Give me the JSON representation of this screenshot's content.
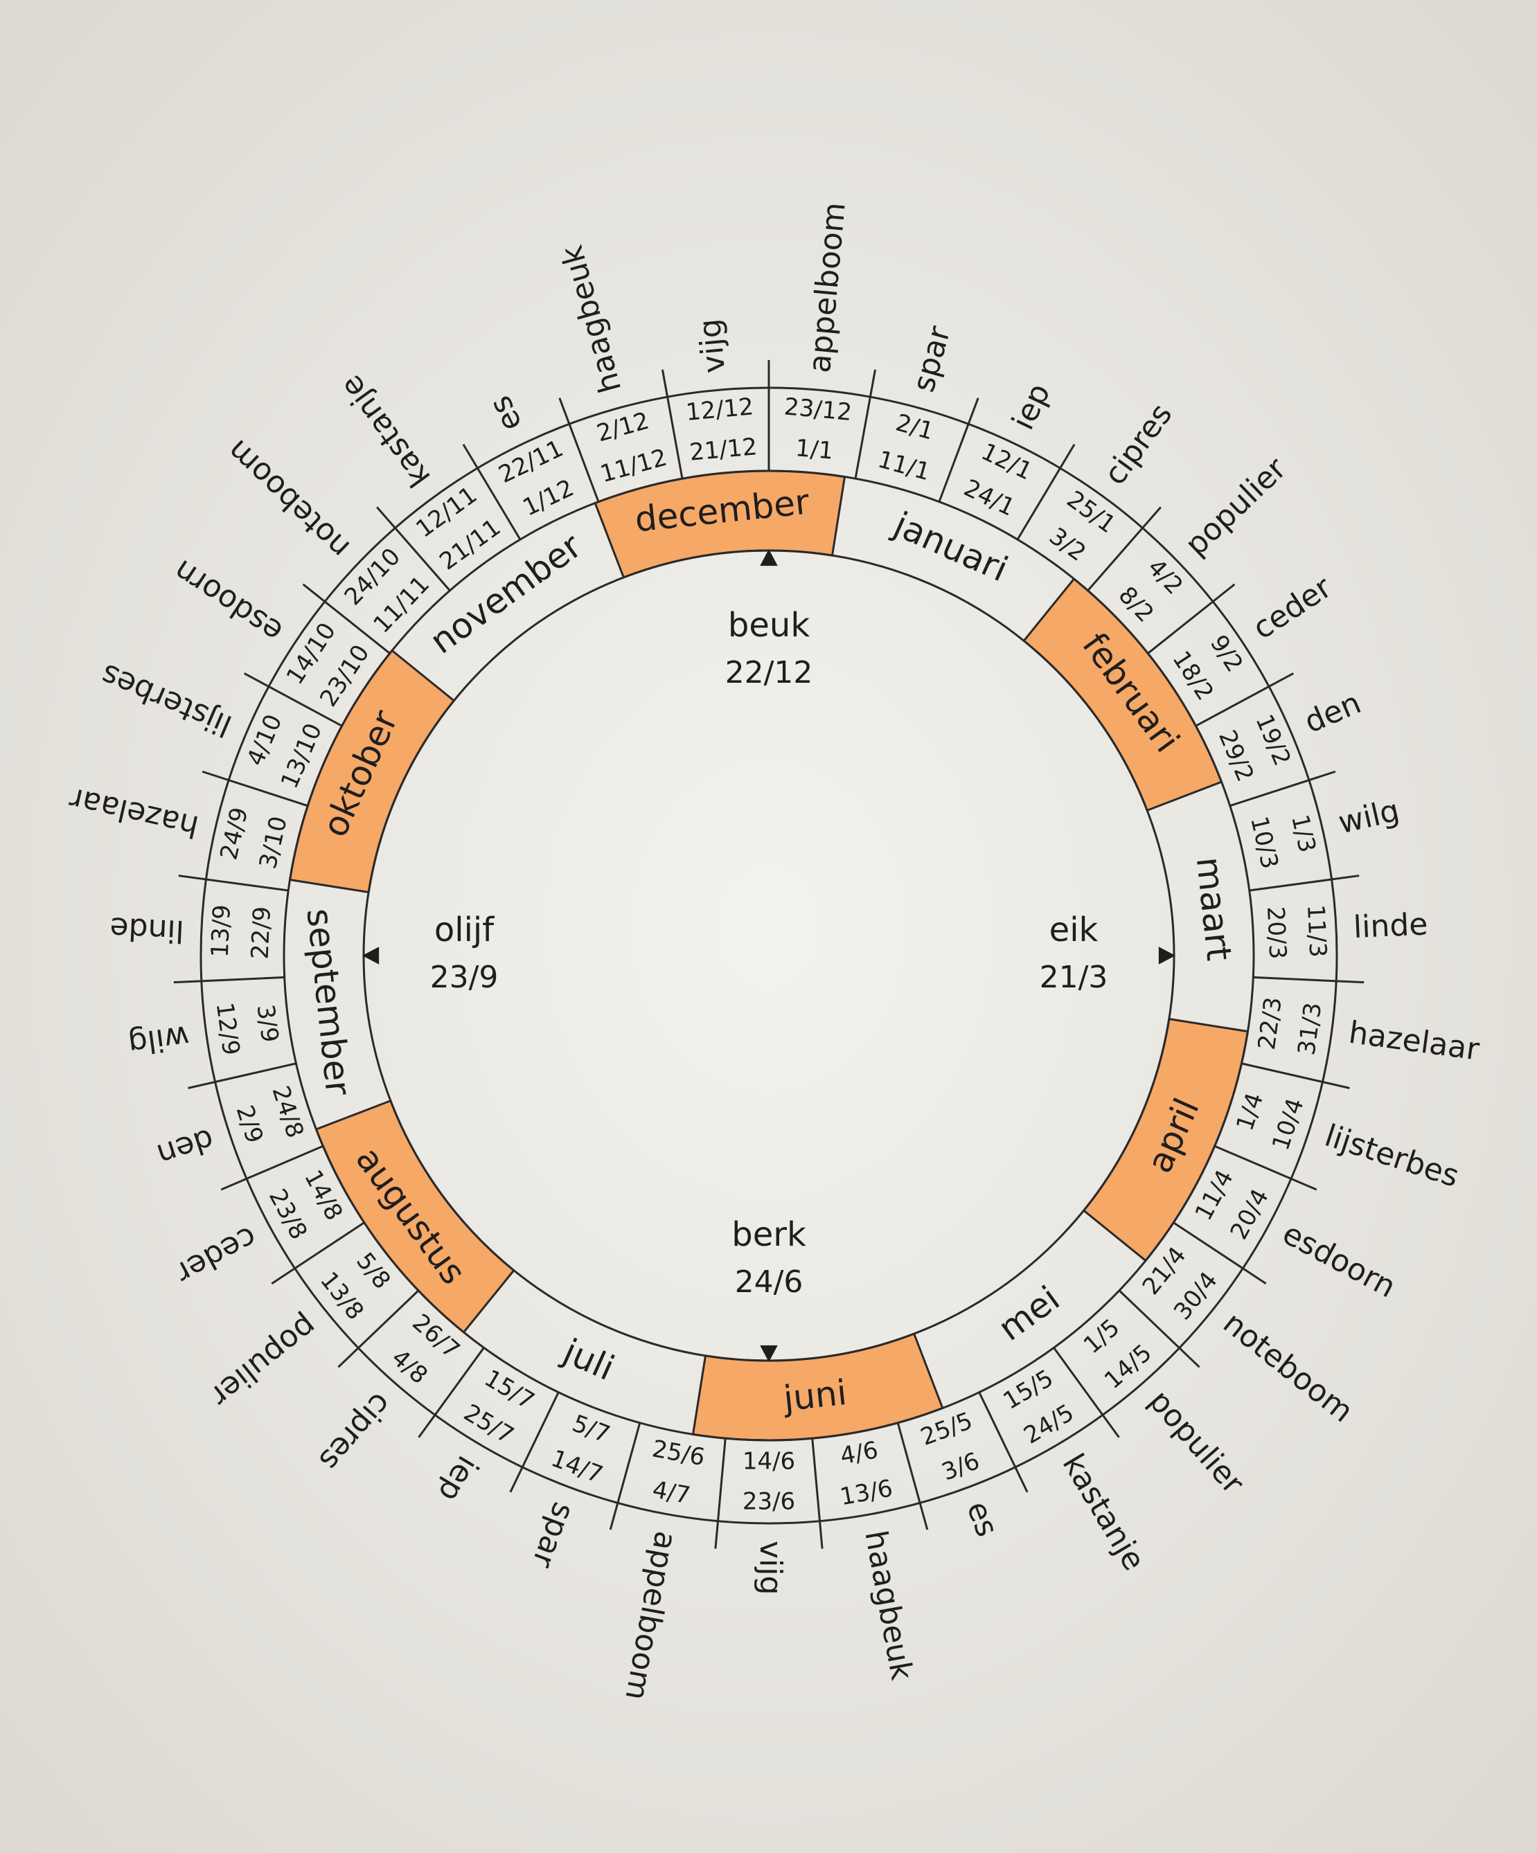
{
  "months": [
    "december",
    "januari",
    "februari",
    "maart",
    "april",
    "mei",
    "juni",
    "juli",
    "augustus",
    "september",
    "oktober",
    "november"
  ],
  "segments": [
    {
      "tree": "appelboom",
      "start": "23/12",
      "end": "1/1"
    },
    {
      "tree": "spar",
      "start": "2/1",
      "end": "11/1"
    },
    {
      "tree": "iep",
      "start": "12/1",
      "end": "24/1"
    },
    {
      "tree": "cipres",
      "start": "25/1",
      "end": "3/2"
    },
    {
      "tree": "populier",
      "start": "4/2",
      "end": "8/2"
    },
    {
      "tree": "ceder",
      "start": "9/2",
      "end": "18/2"
    },
    {
      "tree": "den",
      "start": "19/2",
      "end": "29/2"
    },
    {
      "tree": "wilg",
      "start": "1/3",
      "end": "10/3"
    },
    {
      "tree": "linde",
      "start": "11/3",
      "end": "20/3"
    },
    {
      "tree": "hazelaar",
      "start": "22/3",
      "end": "31/3"
    },
    {
      "tree": "lijsterbes",
      "start": "1/4",
      "end": "10/4"
    },
    {
      "tree": "esdoorn",
      "start": "11/4",
      "end": "20/4"
    },
    {
      "tree": "noteboom",
      "start": "21/4",
      "end": "30/4"
    },
    {
      "tree": "populier",
      "start": "1/5",
      "end": "14/5"
    },
    {
      "tree": "kastanje",
      "start": "15/5",
      "end": "24/5"
    },
    {
      "tree": "es",
      "start": "25/5",
      "end": "3/6"
    },
    {
      "tree": "haagbeuk",
      "start": "4/6",
      "end": "13/6"
    },
    {
      "tree": "vijg",
      "start": "14/6",
      "end": "23/6"
    },
    {
      "tree": "appelboom",
      "start": "25/6",
      "end": "4/7"
    },
    {
      "tree": "spar",
      "start": "5/7",
      "end": "14/7"
    },
    {
      "tree": "iep",
      "start": "15/7",
      "end": "25/7"
    },
    {
      "tree": "cipres",
      "start": "26/7",
      "end": "4/8"
    },
    {
      "tree": "populier",
      "start": "5/8",
      "end": "13/8"
    },
    {
      "tree": "ceder",
      "start": "14/8",
      "end": "23/8"
    },
    {
      "tree": "den",
      "start": "24/8",
      "end": "2/9"
    },
    {
      "tree": "wilg",
      "start": "3/9",
      "end": "12/9"
    },
    {
      "tree": "linde",
      "start": "13/9",
      "end": "22/9"
    },
    {
      "tree": "hazelaar",
      "start": "24/9",
      "end": "3/10"
    },
    {
      "tree": "lijsterbes",
      "start": "4/10",
      "end": "13/10"
    },
    {
      "tree": "esdoorn",
      "start": "14/10",
      "end": "23/10"
    },
    {
      "tree": "noteboom",
      "start": "24/10",
      "end": "11/11"
    },
    {
      "tree": "kastanje",
      "start": "12/11",
      "end": "21/11"
    },
    {
      "tree": "es",
      "start": "22/11",
      "end": "1/12"
    },
    {
      "tree": "haagbeuk",
      "start": "2/12",
      "end": "11/12"
    },
    {
      "tree": "vijg",
      "start": "12/12",
      "end": "21/12"
    }
  ],
  "markers": [
    {
      "tree": "beuk",
      "date": "22/12"
    },
    {
      "tree": "eik",
      "date": "21/3"
    },
    {
      "tree": "berk",
      "date": "24/6"
    },
    {
      "tree": "olijf",
      "date": "23/9"
    }
  ]
}
